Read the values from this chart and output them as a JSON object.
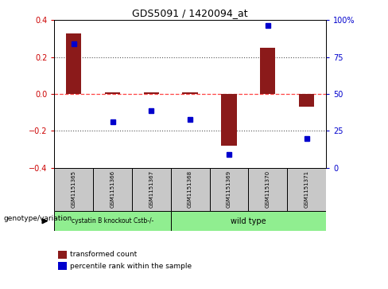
{
  "title": "GDS5091 / 1420094_at",
  "samples": [
    "GSM1151365",
    "GSM1151366",
    "GSM1151367",
    "GSM1151368",
    "GSM1151369",
    "GSM1151370",
    "GSM1151371"
  ],
  "red_bars": [
    0.33,
    0.01,
    0.01,
    0.01,
    -0.28,
    0.25,
    -0.07
  ],
  "blue_dots": [
    0.27,
    -0.15,
    -0.09,
    -0.14,
    -0.33,
    0.37,
    -0.24
  ],
  "ylim": [
    -0.4,
    0.4
  ],
  "yticks_left": [
    -0.4,
    -0.2,
    0.0,
    0.2,
    0.4
  ],
  "yticks_right": [
    0,
    25,
    50,
    75,
    100
  ],
  "yticks_right_labels": [
    "0",
    "25",
    "50",
    "75",
    "100%"
  ],
  "group1_label": "cystatin B knockout Cstb-/-",
  "group2_label": "wild type",
  "group1_indices": [
    0,
    1,
    2
  ],
  "group2_indices": [
    3,
    4,
    5,
    6
  ],
  "group_color": "#90EE90",
  "sample_box_color": "#C8C8C8",
  "bar_color": "#8B1A1A",
  "dot_color": "#0000CD",
  "zero_line_color": "#FF4444",
  "dotted_line_color": "#555555",
  "legend_red_label": "transformed count",
  "legend_blue_label": "percentile rank within the sample",
  "genotype_label": "genotype/variation"
}
